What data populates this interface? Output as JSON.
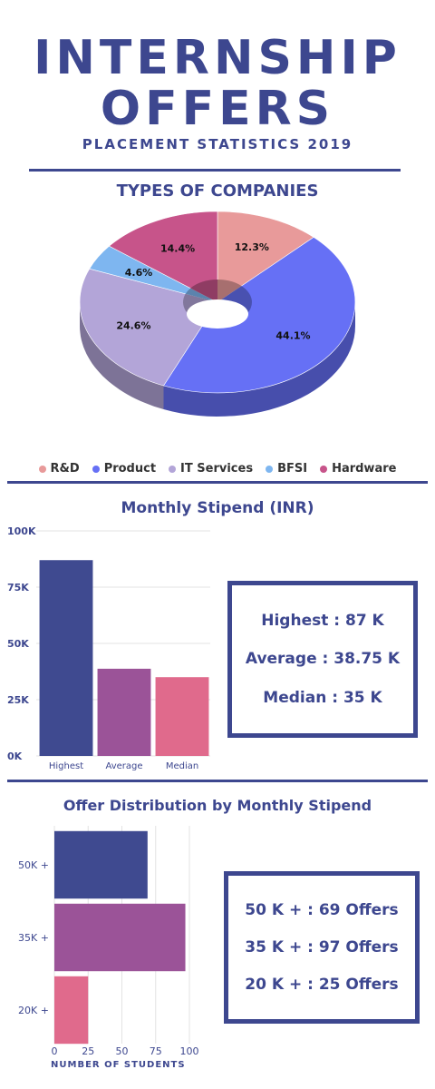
{
  "header": {
    "title_line1": "INTERNSHIP",
    "title_line2": "OFFERS",
    "subtitle": "PLACEMENT STATISTICS 2019"
  },
  "colors": {
    "primary": "#3d478f",
    "rnd": "#e89a9a",
    "product": "#6670f5",
    "it_services": "#b3a5d8",
    "bfsi": "#7eb6f0",
    "hardware": "#c7548a",
    "bar_highest": "#3f4a90",
    "bar_average": "#9b5398",
    "bar_median": "#e06a8c"
  },
  "chart_data": [
    {
      "type": "pie",
      "title": "TYPES OF COMPANIES",
      "labels": [
        "R&D",
        "Product",
        "IT Services",
        "BFSI",
        "Hardware"
      ],
      "values": [
        12.3,
        44.1,
        24.6,
        4.6,
        14.4
      ],
      "value_labels": [
        "12.3%",
        "44.1%",
        "24.6%",
        "4.6%",
        "14.4%"
      ],
      "colors": [
        "#e89a9a",
        "#6670f5",
        "#b3a5d8",
        "#7eb6f0",
        "#c7548a"
      ],
      "legend": "bottom",
      "donut": true
    },
    {
      "type": "bar",
      "title": "Monthly Stipend (INR)",
      "categories": [
        "Highest",
        "Average",
        "Median"
      ],
      "values": [
        87000,
        38750,
        35000
      ],
      "colors": [
        "#3f4a90",
        "#9b5398",
        "#e06a8c"
      ],
      "ylim": [
        0,
        100000
      ],
      "yticks": [
        0,
        25000,
        50000,
        75000,
        100000
      ],
      "ytick_labels": [
        "0K",
        "25K",
        "50K",
        "75K",
        "100K"
      ],
      "grid": true
    },
    {
      "type": "bar",
      "orientation": "horizontal",
      "title": "Offer Distribution by Monthly Stipend",
      "categories": [
        "50K +",
        "35K +",
        "20K +"
      ],
      "values": [
        69,
        97,
        25
      ],
      "colors": [
        "#3f4a90",
        "#9b5398",
        "#e06a8c"
      ],
      "xlim": [
        0,
        100
      ],
      "xticks": [
        0,
        25,
        50,
        75,
        100
      ],
      "xtick_labels": [
        "0",
        "25",
        "50",
        "75",
        "100"
      ],
      "xlabel": "NUMBER OF STUDENTS",
      "grid": true
    }
  ],
  "stipend_box": {
    "highest": "Highest : 87 K",
    "average": "Average : 38.75 K",
    "median": "Median : 35 K"
  },
  "offers_box": {
    "line1": "50 K + : 69 Offers",
    "line2": "35 K + : 97 Offers",
    "line3": "20 K + : 25 Offers"
  }
}
